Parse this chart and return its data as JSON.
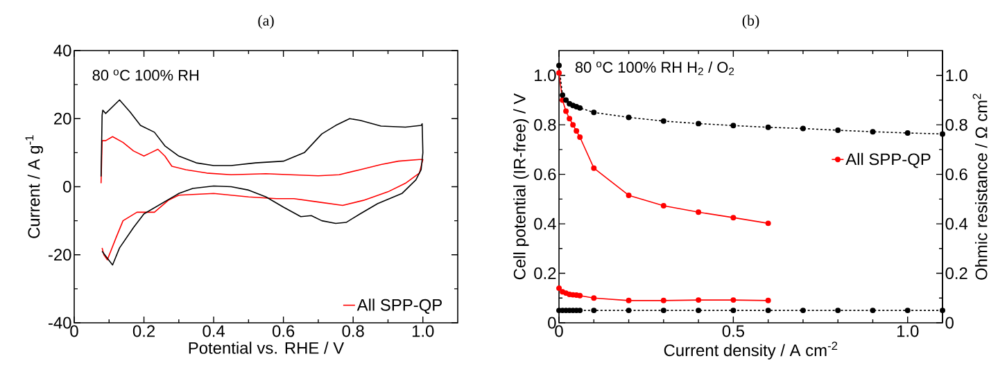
{
  "chart_data": [
    {
      "type": "line",
      "title": "(a)",
      "xlabel": "Potential vs. RHE / V",
      "ylabel": "Current / A g$^{-1}$",
      "annotations": [
        "80 $^{o}$C 100% RH"
      ],
      "xlim": [
        0,
        1.1
      ],
      "ylim": [
        -40,
        40
      ],
      "xticks": [
        0,
        0.2,
        0.4,
        0.6,
        0.8,
        {
          "value": 1,
          "label": "1.0"
        }
      ],
      "yticks": [
        -40,
        -20,
        0,
        20,
        40
      ],
      "legend": "bottom right",
      "grid": false,
      "series": [
        {
          "name": "All SPP-QP",
          "color": "#ff0000",
          "line_style": "solid",
          "x": [
            0.077,
            0.08,
            0.09,
            0.11,
            0.14,
            0.17,
            0.2,
            0.22,
            0.24,
            0.26,
            0.28,
            0.32,
            0.38,
            0.45,
            0.55,
            0.62,
            0.7,
            0.76,
            0.82,
            0.88,
            0.93,
            0.99,
            1.0,
            0.99,
            0.95,
            0.9,
            0.83,
            0.77,
            0.7,
            0.63,
            0.58,
            0.5,
            0.4,
            0.3,
            0.27,
            0.23,
            0.18,
            0.14,
            0.12,
            0.095,
            0.085,
            0.08
          ],
          "values": [
            1,
            13.5,
            13.5,
            14.7,
            13,
            10.5,
            9,
            10,
            11,
            9,
            6,
            5,
            4,
            3.5,
            3.8,
            3.5,
            3.2,
            3.5,
            5,
            6.5,
            7.5,
            8,
            8,
            4,
            1,
            -1.5,
            -4,
            -5.5,
            -4.5,
            -3.5,
            -3.5,
            -3,
            -2,
            -2.5,
            -4,
            -7.5,
            -7.5,
            -10,
            -15,
            -21.5,
            -20,
            -18
          ]
        },
        {
          "color": "#000000",
          "line_style": "solid",
          "x": [
            0.077,
            0.08,
            0.082,
            0.09,
            0.13,
            0.16,
            0.19,
            0.23,
            0.26,
            0.3,
            0.35,
            0.4,
            0.45,
            0.52,
            0.6,
            0.66,
            0.71,
            0.75,
            0.79,
            0.82,
            0.88,
            0.95,
            0.995,
            0.998,
            1.0,
            0.995,
            0.98,
            0.94,
            0.87,
            0.82,
            0.78,
            0.75,
            0.71,
            0.68,
            0.65,
            0.6,
            0.55,
            0.5,
            0.45,
            0.4,
            0.34,
            0.3,
            0.25,
            0.2,
            0.17,
            0.13,
            0.11,
            0.095,
            0.08
          ],
          "values": [
            3,
            21,
            22.5,
            21.5,
            25.5,
            22,
            18,
            16,
            12,
            9,
            7,
            6.2,
            6.2,
            7,
            7.5,
            10,
            15.5,
            18,
            20,
            19.5,
            17.8,
            17.5,
            18,
            18.5,
            10,
            5,
            2,
            -2,
            -5,
            -8,
            -10.5,
            -10.8,
            -10,
            -8.5,
            -8.8,
            -6,
            -3,
            -1,
            0,
            0.2,
            -0.5,
            -2,
            -5,
            -8,
            -12,
            -18,
            -23,
            -21,
            -19
          ]
        }
      ]
    },
    {
      "type": "line",
      "title": "(b)",
      "xlabel": "Current density / A cm$^{-2}$",
      "ylabel": "Cell potential (IR-free) / V",
      "y2label": "Ohmic resistance / Ω cm$^{2}$",
      "annotations": [
        "80 $^{o}$C 100% RH   H$_{2}$ / O$_{2}$"
      ],
      "xlim": [
        0,
        1.1
      ],
      "ylim": [
        0,
        1.1
      ],
      "y2lim": [
        0,
        1.1
      ],
      "xticks": [
        0,
        0.5,
        {
          "value": 1,
          "label": "1.0"
        }
      ],
      "yticks": [
        0,
        0.2,
        0.4,
        0.6,
        0.8,
        {
          "value": 1,
          "label": "1.0"
        }
      ],
      "y2ticks": [
        0,
        0.2,
        0.4,
        0.6,
        0.8,
        {
          "value": 1,
          "label": "1.0"
        }
      ],
      "legend": "right",
      "grid": false,
      "marker": "circle",
      "series": [
        {
          "name": "All SPP-QP",
          "color": "#ff0000",
          "line_style": "solid",
          "x": [
            0,
            0.01,
            0.02,
            0.03,
            0.04,
            0.05,
            0.06,
            0.1,
            0.2,
            0.3,
            0.4,
            0.5,
            0.6
          ],
          "values": [
            1.01,
            0.9,
            0.855,
            0.825,
            0.8,
            0.775,
            0.75,
            0.625,
            0.515,
            0.473,
            0.447,
            0.425,
            0.402
          ]
        },
        {
          "color": "#000000",
          "line_style": "dashed",
          "x": [
            0,
            0.01,
            0.02,
            0.03,
            0.04,
            0.05,
            0.06,
            0.1,
            0.2,
            0.3,
            0.4,
            0.5,
            0.6,
            0.7,
            0.8,
            0.9,
            1.0,
            1.1
          ],
          "values": [
            1.04,
            0.92,
            0.9,
            0.885,
            0.878,
            0.873,
            0.868,
            0.85,
            0.83,
            0.815,
            0.805,
            0.797,
            0.79,
            0.785,
            0.778,
            0.772,
            0.767,
            0.763
          ]
        },
        {
          "color": "#ff0000",
          "line_style": "solid",
          "axis": "y2",
          "x": [
            0,
            0.01,
            0.02,
            0.03,
            0.04,
            0.05,
            0.06,
            0.1,
            0.2,
            0.3,
            0.4,
            0.5,
            0.6
          ],
          "values": [
            0.14,
            0.125,
            0.12,
            0.115,
            0.113,
            0.112,
            0.11,
            0.1,
            0.09,
            0.09,
            0.092,
            0.092,
            0.09
          ]
        },
        {
          "color": "#000000",
          "line_style": "dashed",
          "axis": "y2",
          "x": [
            0,
            0.01,
            0.02,
            0.03,
            0.04,
            0.05,
            0.06,
            0.1,
            0.2,
            0.3,
            0.4,
            0.5,
            0.6,
            0.7,
            0.8,
            0.9,
            1.0,
            1.1
          ],
          "values": [
            0.05,
            0.05,
            0.05,
            0.05,
            0.05,
            0.05,
            0.05,
            0.05,
            0.05,
            0.05,
            0.05,
            0.05,
            0.05,
            0.05,
            0.05,
            0.05,
            0.05,
            0.05
          ]
        }
      ]
    }
  ]
}
